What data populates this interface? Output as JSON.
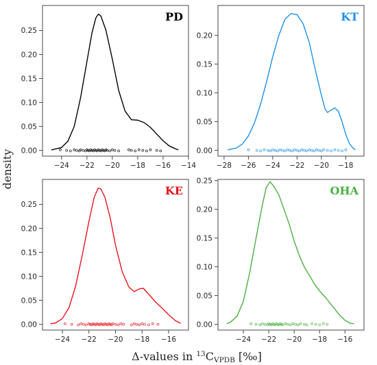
{
  "figure": {
    "ylabel": "density",
    "xlabel_main": "Δ-values in ",
    "xlabel_sup": "13",
    "xlabel_c": "C",
    "xlabel_sub": "VPDB",
    "xlabel_unit": " [‰]"
  },
  "chart_data": [
    {
      "type": "line",
      "label": "PD",
      "color": "#000000",
      "xlim": [
        -25.5,
        -14
      ],
      "ylim": [
        -0.012,
        0.302
      ],
      "xticks": [
        -24,
        -22,
        -20,
        -18,
        -16,
        -14
      ],
      "yticks": [
        0.0,
        0.05,
        0.1,
        0.15,
        0.2,
        0.25
      ],
      "curve": [
        [
          -24.8,
          0.001
        ],
        [
          -24.0,
          0.006
        ],
        [
          -23.5,
          0.019
        ],
        [
          -23.0,
          0.05
        ],
        [
          -22.5,
          0.11
        ],
        [
          -22.0,
          0.185
        ],
        [
          -21.6,
          0.245
        ],
        [
          -21.3,
          0.276
        ],
        [
          -21.1,
          0.284
        ],
        [
          -20.9,
          0.28
        ],
        [
          -20.5,
          0.25
        ],
        [
          -20.0,
          0.19
        ],
        [
          -19.5,
          0.125
        ],
        [
          -19.0,
          0.082
        ],
        [
          -18.5,
          0.064
        ],
        [
          -18.0,
          0.063
        ],
        [
          -17.5,
          0.058
        ],
        [
          -17.0,
          0.048
        ],
        [
          -16.5,
          0.034
        ],
        [
          -16.0,
          0.02
        ],
        [
          -15.5,
          0.009
        ],
        [
          -15.0,
          0.003
        ],
        [
          -14.8,
          0.001
        ]
      ],
      "rug": [
        -24.1,
        -23.6,
        -23.3,
        -23.0,
        -22.8,
        -22.6,
        -22.5,
        -22.3,
        -22.1,
        -22.0,
        -21.9,
        -21.8,
        -21.7,
        -21.6,
        -21.5,
        -21.4,
        -21.3,
        -21.2,
        -21.1,
        -21.0,
        -20.9,
        -20.8,
        -20.7,
        -20.6,
        -20.5,
        -20.4,
        -20.2,
        -20.0,
        -19.8,
        -19.5,
        -18.7,
        -18.5,
        -18.2,
        -17.9,
        -17.6,
        -17.3,
        -17.0,
        -16.5,
        -16.2
      ]
    },
    {
      "type": "line",
      "label": "KT",
      "color": "#1e90e8",
      "xlim": [
        -28.5,
        -16.5
      ],
      "ylim": [
        -0.01,
        0.252
      ],
      "xticks": [
        -28,
        -26,
        -24,
        -22,
        -20,
        -18
      ],
      "yticks": [
        0.0,
        0.05,
        0.1,
        0.15,
        0.2
      ],
      "curve": [
        [
          -27.7,
          0.001
        ],
        [
          -27.0,
          0.004
        ],
        [
          -26.5,
          0.011
        ],
        [
          -26.0,
          0.025
        ],
        [
          -25.5,
          0.048
        ],
        [
          -25.0,
          0.08
        ],
        [
          -24.5,
          0.12
        ],
        [
          -24.0,
          0.163
        ],
        [
          -23.5,
          0.2
        ],
        [
          -23.0,
          0.228
        ],
        [
          -22.5,
          0.238
        ],
        [
          -22.0,
          0.236
        ],
        [
          -21.5,
          0.22
        ],
        [
          -21.0,
          0.188
        ],
        [
          -20.5,
          0.14
        ],
        [
          -20.0,
          0.096
        ],
        [
          -19.7,
          0.072
        ],
        [
          -19.5,
          0.066
        ],
        [
          -19.2,
          0.07
        ],
        [
          -18.9,
          0.074
        ],
        [
          -18.6,
          0.068
        ],
        [
          -18.3,
          0.05
        ],
        [
          -18.0,
          0.028
        ],
        [
          -17.7,
          0.012
        ],
        [
          -17.4,
          0.004
        ],
        [
          -17.2,
          0.001
        ]
      ],
      "rug": [
        -26.0,
        -25.3,
        -25.0,
        -24.7,
        -24.4,
        -24.2,
        -24.0,
        -23.8,
        -23.6,
        -23.4,
        -23.2,
        -23.0,
        -22.8,
        -22.6,
        -22.4,
        -22.2,
        -22.0,
        -21.8,
        -21.6,
        -21.4,
        -21.2,
        -21.0,
        -20.8,
        -20.6,
        -20.4,
        -20.2,
        -20.0,
        -19.8,
        -19.5,
        -19.2,
        -18.9,
        -18.6,
        -18.3,
        -18.0
      ]
    },
    {
      "type": "line",
      "label": "KE",
      "color": "#e8141e",
      "xlim": [
        -25.5,
        -14.5
      ],
      "ylim": [
        -0.012,
        0.302
      ],
      "xticks": [
        -24,
        -22,
        -20,
        -18,
        -16
      ],
      "yticks": [
        0.0,
        0.05,
        0.1,
        0.15,
        0.2,
        0.25
      ],
      "curve": [
        [
          -24.9,
          0.001
        ],
        [
          -24.5,
          0.003
        ],
        [
          -24.0,
          0.012
        ],
        [
          -23.5,
          0.035
        ],
        [
          -23.0,
          0.08
        ],
        [
          -22.5,
          0.145
        ],
        [
          -22.0,
          0.215
        ],
        [
          -21.6,
          0.265
        ],
        [
          -21.3,
          0.284
        ],
        [
          -21.1,
          0.282
        ],
        [
          -20.8,
          0.265
        ],
        [
          -20.4,
          0.222
        ],
        [
          -20.0,
          0.165
        ],
        [
          -19.5,
          0.11
        ],
        [
          -19.0,
          0.078
        ],
        [
          -18.6,
          0.068
        ],
        [
          -18.2,
          0.074
        ],
        [
          -17.9,
          0.075
        ],
        [
          -17.5,
          0.063
        ],
        [
          -17.0,
          0.047
        ],
        [
          -16.5,
          0.034
        ],
        [
          -16.0,
          0.02
        ],
        [
          -15.5,
          0.008
        ],
        [
          -15.1,
          0.002
        ]
      ],
      "rug": [
        -23.8,
        -23.3,
        -22.8,
        -22.6,
        -22.4,
        -22.2,
        -22.0,
        -21.9,
        -21.8,
        -21.7,
        -21.6,
        -21.5,
        -21.4,
        -21.3,
        -21.2,
        -21.1,
        -21.0,
        -20.9,
        -20.8,
        -20.7,
        -20.6,
        -20.5,
        -20.4,
        -20.3,
        -20.2,
        -20.0,
        -19.8,
        -19.6,
        -19.4,
        -18.8,
        -18.6,
        -18.4,
        -18.2,
        -18.0,
        -17.8,
        -17.5,
        -17.2,
        -16.8
      ]
    },
    {
      "type": "line",
      "label": "OHA",
      "color": "#4aaf42",
      "xlim": [
        -26,
        -14.5
      ],
      "ylim": [
        -0.01,
        0.252
      ],
      "xticks": [
        -24,
        -22,
        -20,
        -18,
        -16
      ],
      "yticks": [
        0.0,
        0.05,
        0.1,
        0.15,
        0.2,
        0.25
      ],
      "curve": [
        [
          -25.3,
          0.001
        ],
        [
          -25.0,
          0.004
        ],
        [
          -24.5,
          0.014
        ],
        [
          -24.0,
          0.04
        ],
        [
          -23.5,
          0.09
        ],
        [
          -23.0,
          0.15
        ],
        [
          -22.5,
          0.208
        ],
        [
          -22.2,
          0.238
        ],
        [
          -21.9,
          0.248
        ],
        [
          -21.6,
          0.24
        ],
        [
          -21.2,
          0.225
        ],
        [
          -20.8,
          0.2
        ],
        [
          -20.4,
          0.175
        ],
        [
          -20.0,
          0.145
        ],
        [
          -19.6,
          0.12
        ],
        [
          -19.2,
          0.1
        ],
        [
          -18.8,
          0.085
        ],
        [
          -18.4,
          0.07
        ],
        [
          -18.0,
          0.058
        ],
        [
          -17.5,
          0.046
        ],
        [
          -17.0,
          0.032
        ],
        [
          -16.5,
          0.018
        ],
        [
          -16.0,
          0.007
        ],
        [
          -15.6,
          0.002
        ],
        [
          -15.3,
          0.001
        ]
      ],
      "rug": [
        -23.4,
        -23.0,
        -22.7,
        -22.5,
        -22.3,
        -22.1,
        -22.0,
        -21.9,
        -21.8,
        -21.7,
        -21.6,
        -21.5,
        -21.4,
        -21.3,
        -21.2,
        -21.1,
        -21.0,
        -20.9,
        -20.7,
        -20.5,
        -20.3,
        -20.1,
        -19.9,
        -19.7,
        -19.5,
        -19.2,
        -19.0,
        -18.6,
        -18.3,
        -18.0,
        -17.7,
        -17.4
      ]
    }
  ]
}
